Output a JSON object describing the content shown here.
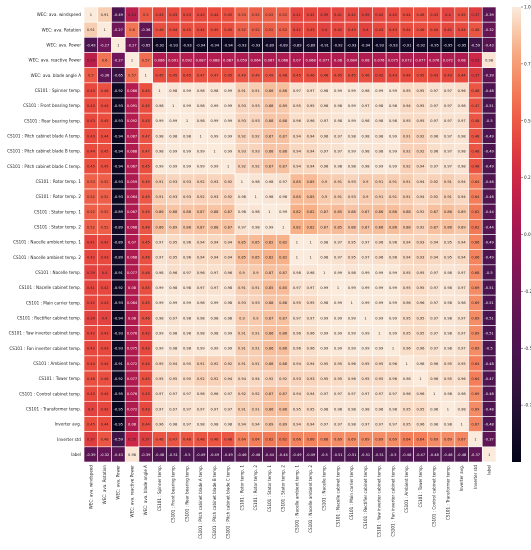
{
  "chart_data": {
    "type": "heatmap",
    "title": "",
    "xlabel": "",
    "ylabel": "",
    "labels": [
      "WEC: ava. windspeed",
      "WEC: ava. Rotation",
      "WEC: ava. Power",
      "WEC: ava. reactive Power",
      "WEC: ava. blade angle A",
      "CS101 : Spinner temp.",
      "CS101 : Front bearing temp.",
      "CS101 : Rear bearing temp.",
      "CS101 : Pitch cabinet blade A temp.",
      "CS101 : Pitch cabinet blade B temp.",
      "CS101 : Pitch cabinet blade C temp.",
      "CS101 : Rotor temp. 1",
      "CS101 : Rotor temp. 2",
      "CS101 : Stator temp. 1",
      "CS101 : Stator temp. 2",
      "CS101 : Nacelle ambient temp. 1",
      "CS101 : Nacelle ambient temp. 2",
      "CS101 : Nacelle temp.",
      "CS101 : Nacelle cabinet temp.",
      "CS101 : Main carrier temp.",
      "CS101 : Rectifier cabinet temp.",
      "CS101 : Yaw inverter cabinet temp.",
      "CS101 : Fan inverter cabinet temp.",
      "CS101 : Ambient temp.",
      "CS101 : Tower temp.",
      "CS101 : Control cabinet temp.",
      "CS101 : Transformer temp.",
      "Inverter avg.",
      "Inverter std",
      "label"
    ],
    "matrix": [
      [
        1,
        0.91,
        -0.49,
        0.14,
        0.5,
        0.43,
        0.43,
        0.43,
        0.43,
        0.44,
        0.45,
        0.53,
        0.52,
        0.52,
        0.52,
        0.41,
        0.42,
        0.39,
        0.41,
        0.42,
        0.39,
        0.42,
        0.42,
        0.44,
        0.46,
        0.43,
        0.4,
        0.45,
        0.37,
        -0.39
      ],
      [
        0.91,
        1,
        -0.27,
        0.6,
        -0.36,
        0.46,
        0.44,
        0.45,
        0.44,
        0.45,
        0.45,
        0.52,
        0.52,
        0.52,
        0.52,
        0.42,
        0.43,
        0.4,
        0.42,
        0.43,
        0.4,
        0.43,
        0.43,
        0.44,
        0.46,
        0.44,
        0.42,
        0.44,
        0.48,
        -0.32
      ],
      [
        -0.49,
        -0.27,
        1,
        -0.27,
        -0.65,
        -0.92,
        -0.93,
        -0.93,
        -0.94,
        -0.94,
        -0.94,
        -0.93,
        -0.93,
        -0.89,
        -0.89,
        -0.89,
        -0.89,
        -0.91,
        -0.92,
        -0.93,
        -0.94,
        -0.93,
        -0.93,
        -0.91,
        -0.92,
        -0.95,
        -0.95,
        -0.95,
        -0.59,
        -0.43
      ],
      [
        0.14,
        0.6,
        -0.27,
        1,
        0.57,
        0.086,
        0.091,
        0.092,
        0.087,
        0.088,
        0.087,
        0.059,
        0.064,
        0.067,
        0.068,
        0.07,
        0.068,
        0.077,
        0.08,
        0.084,
        0.08,
        0.076,
        0.075,
        0.072,
        0.077,
        0.076,
        0.072,
        0.08,
        0.25,
        0.98
      ],
      [
        0.5,
        -0.36,
        -0.65,
        0.57,
        1,
        0.45,
        0.45,
        0.45,
        0.47,
        0.47,
        0.45,
        0.49,
        0.49,
        0.49,
        0.48,
        0.45,
        0.46,
        0.46,
        0.45,
        0.45,
        0.46,
        0.42,
        0.43,
        0.44,
        0.45,
        0.43,
        0.43,
        0.44,
        0.37,
        -0.39
      ],
      [
        0.43,
        0.46,
        -0.92,
        0.086,
        0.45,
        1,
        0.98,
        0.99,
        0.98,
        0.98,
        0.99,
        0.91,
        0.91,
        0.86,
        0.86,
        0.97,
        0.97,
        0.98,
        0.99,
        0.99,
        0.98,
        0.99,
        0.99,
        0.95,
        0.95,
        0.97,
        0.97,
        0.96,
        0.48,
        -0.48
      ],
      [
        0.43,
        0.44,
        -0.93,
        0.091,
        0.45,
        0.98,
        1,
        0.99,
        0.98,
        0.99,
        0.99,
        0.93,
        0.93,
        0.88,
        0.89,
        0.95,
        0.95,
        0.96,
        0.98,
        0.99,
        0.97,
        0.98,
        0.98,
        0.94,
        0.95,
        0.97,
        0.97,
        0.98,
        0.47,
        -0.51
      ],
      [
        0.43,
        0.45,
        -0.93,
        0.092,
        0.45,
        0.99,
        0.99,
        1,
        0.98,
        0.99,
        0.99,
        0.93,
        0.93,
        0.88,
        0.88,
        0.96,
        0.96,
        0.97,
        0.98,
        0.99,
        0.98,
        0.98,
        0.98,
        0.95,
        0.95,
        0.97,
        0.97,
        0.97,
        0.48,
        -0.5
      ],
      [
        0.43,
        0.44,
        -0.94,
        0.087,
        0.47,
        0.98,
        0.98,
        0.98,
        1,
        0.99,
        0.99,
        0.92,
        0.92,
        0.87,
        0.87,
        0.94,
        0.94,
        0.96,
        0.97,
        0.98,
        0.98,
        0.98,
        0.99,
        0.91,
        0.92,
        0.96,
        0.97,
        0.98,
        0.48,
        -0.49
      ],
      [
        0.44,
        0.45,
        -0.94,
        0.088,
        0.47,
        0.98,
        0.99,
        0.99,
        0.99,
        1,
        0.99,
        0.93,
        0.93,
        0.88,
        0.88,
        0.94,
        0.94,
        0.97,
        0.97,
        0.99,
        0.98,
        0.98,
        0.99,
        0.92,
        0.92,
        0.96,
        0.97,
        0.98,
        0.48,
        -0.49
      ],
      [
        0.45,
        0.45,
        -0.94,
        0.087,
        0.45,
        0.99,
        0.99,
        0.99,
        0.99,
        0.99,
        1,
        0.92,
        0.92,
        0.87,
        0.87,
        0.94,
        0.94,
        0.96,
        0.98,
        0.98,
        0.98,
        0.99,
        0.99,
        0.92,
        0.94,
        0.97,
        0.97,
        0.98,
        0.48,
        -0.49
      ],
      [
        0.53,
        0.52,
        -0.93,
        0.059,
        0.49,
        0.91,
        0.93,
        0.93,
        0.92,
        0.93,
        0.92,
        1,
        0.98,
        0.98,
        0.97,
        0.85,
        0.85,
        0.9,
        0.91,
        0.93,
        0.9,
        0.91,
        0.91,
        0.91,
        0.94,
        0.92,
        0.91,
        0.94,
        0.64,
        -0.46
      ],
      [
        0.52,
        0.52,
        -0.93,
        0.064,
        0.49,
        0.91,
        0.93,
        0.93,
        0.92,
        0.93,
        0.92,
        0.98,
        1,
        0.98,
        0.98,
        0.85,
        0.85,
        0.9,
        0.91,
        0.93,
        0.9,
        0.91,
        0.91,
        0.91,
        0.94,
        0.92,
        0.91,
        0.94,
        0.64,
        -0.46
      ],
      [
        0.52,
        0.52,
        -0.89,
        0.067,
        0.49,
        0.86,
        0.88,
        0.88,
        0.87,
        0.88,
        0.87,
        0.98,
        0.98,
        1,
        0.99,
        0.82,
        0.82,
        0.87,
        0.85,
        0.88,
        0.87,
        0.86,
        0.86,
        0.88,
        0.92,
        0.87,
        0.86,
        0.89,
        0.62,
        -0.44
      ],
      [
        0.52,
        0.52,
        -0.89,
        0.068,
        0.48,
        0.86,
        0.89,
        0.88,
        0.87,
        0.88,
        0.87,
        0.97,
        0.98,
        0.99,
        1,
        0.82,
        0.82,
        0.87,
        0.85,
        0.88,
        0.87,
        0.86,
        0.86,
        0.88,
        0.92,
        0.87,
        0.86,
        0.89,
        0.62,
        -0.44
      ],
      [
        0.41,
        0.42,
        -0.89,
        0.07,
        0.45,
        0.97,
        0.95,
        0.96,
        0.94,
        0.94,
        0.94,
        0.85,
        0.85,
        0.82,
        0.82,
        1,
        1,
        0.98,
        0.97,
        0.95,
        0.97,
        0.96,
        0.96,
        0.94,
        0.93,
        0.94,
        0.95,
        0.94,
        0.66,
        -0.49
      ],
      [
        0.42,
        0.43,
        -0.89,
        0.068,
        0.46,
        0.97,
        0.95,
        0.96,
        0.94,
        0.94,
        0.94,
        0.85,
        0.85,
        0.82,
        0.82,
        1,
        1,
        0.98,
        0.97,
        0.95,
        0.97,
        0.96,
        0.96,
        0.94,
        0.93,
        0.94,
        0.95,
        0.94,
        0.66,
        -0.49
      ],
      [
        0.39,
        0.4,
        -0.91,
        0.077,
        0.46,
        0.98,
        0.96,
        0.97,
        0.96,
        0.97,
        0.96,
        0.9,
        0.9,
        0.87,
        0.87,
        0.98,
        0.98,
        1,
        0.99,
        0.98,
        0.99,
        0.99,
        0.99,
        0.95,
        0.95,
        0.97,
        0.98,
        0.97,
        0.68,
        -0.5
      ],
      [
        0.41,
        0.42,
        -0.92,
        0.08,
        0.45,
        0.99,
        0.98,
        0.98,
        0.97,
        0.97,
        0.98,
        0.91,
        0.91,
        0.85,
        0.85,
        0.97,
        0.97,
        0.99,
        1,
        0.99,
        0.99,
        0.99,
        0.99,
        0.95,
        0.95,
        0.97,
        0.98,
        0.97,
        0.69,
        -0.51
      ],
      [
        0.42,
        0.43,
        -0.93,
        0.084,
        0.45,
        0.99,
        0.99,
        0.99,
        0.98,
        0.99,
        0.98,
        0.93,
        0.93,
        0.88,
        0.88,
        0.95,
        0.95,
        0.98,
        0.99,
        1,
        0.99,
        0.99,
        0.99,
        0.96,
        0.96,
        0.97,
        0.98,
        0.98,
        0.69,
        -0.51
      ],
      [
        0.39,
        0.4,
        -0.94,
        0.08,
        0.46,
        0.98,
        0.97,
        0.98,
        0.98,
        0.98,
        0.98,
        0.9,
        0.9,
        0.87,
        0.87,
        0.97,
        0.97,
        0.99,
        0.99,
        0.99,
        1,
        0.99,
        0.99,
        0.95,
        0.95,
        0.97,
        0.98,
        0.97,
        0.69,
        -0.51
      ],
      [
        0.42,
        0.43,
        -0.93,
        0.076,
        0.42,
        0.99,
        0.98,
        0.98,
        0.98,
        0.98,
        0.99,
        0.91,
        0.91,
        0.86,
        0.86,
        0.96,
        0.96,
        0.99,
        0.99,
        0.99,
        0.99,
        1,
        0.99,
        0.95,
        0.95,
        0.97,
        0.98,
        0.97,
        0.69,
        -0.51
      ],
      [
        0.42,
        0.43,
        -0.93,
        0.075,
        0.43,
        0.99,
        0.98,
        0.98,
        0.99,
        0.99,
        0.99,
        0.91,
        0.91,
        0.86,
        0.86,
        0.96,
        0.96,
        0.99,
        0.99,
        0.99,
        0.99,
        0.99,
        1,
        0.96,
        0.96,
        0.97,
        0.98,
        0.97,
        0.69,
        -0.5
      ],
      [
        0.44,
        0.44,
        -0.91,
        0.072,
        0.44,
        0.95,
        0.94,
        0.95,
        0.91,
        0.92,
        0.92,
        0.91,
        0.91,
        0.88,
        0.88,
        0.94,
        0.94,
        0.95,
        0.95,
        0.96,
        0.95,
        0.95,
        0.96,
        1,
        0.98,
        0.96,
        0.95,
        0.95,
        0.64,
        -0.48
      ],
      [
        0.46,
        0.46,
        -0.92,
        0.077,
        0.45,
        0.95,
        0.95,
        0.95,
        0.92,
        0.92,
        0.94,
        0.94,
        0.94,
        0.92,
        0.92,
        0.93,
        0.93,
        0.95,
        0.95,
        0.96,
        0.95,
        0.95,
        0.96,
        0.98,
        1,
        0.96,
        0.95,
        0.96,
        0.64,
        -0.47
      ],
      [
        0.43,
        0.44,
        -0.95,
        0.076,
        0.43,
        0.97,
        0.97,
        0.97,
        0.96,
        0.96,
        0.97,
        0.92,
        0.92,
        0.87,
        0.87,
        0.94,
        0.94,
        0.97,
        0.97,
        0.97,
        0.97,
        0.97,
        0.97,
        0.96,
        0.96,
        1,
        0.98,
        0.98,
        0.69,
        -0.48
      ],
      [
        0.4,
        0.42,
        -0.95,
        0.072,
        0.43,
        0.97,
        0.97,
        0.97,
        0.97,
        0.97,
        0.97,
        0.91,
        0.91,
        0.86,
        0.86,
        0.95,
        0.95,
        0.98,
        0.98,
        0.98,
        0.98,
        0.98,
        0.98,
        0.95,
        0.95,
        0.98,
        1,
        0.98,
        0.69,
        -0.48
      ],
      [
        0.45,
        0.44,
        -0.95,
        0.08,
        0.44,
        0.96,
        0.98,
        0.97,
        0.98,
        0.98,
        0.98,
        0.94,
        0.94,
        0.89,
        0.89,
        0.94,
        0.94,
        0.97,
        0.97,
        0.98,
        0.97,
        0.97,
        0.97,
        0.95,
        0.96,
        0.98,
        0.98,
        1,
        0.67,
        -0.48
      ],
      [
        0.37,
        0.48,
        -0.59,
        0.25,
        0.37,
        0.48,
        0.47,
        0.48,
        0.48,
        0.48,
        0.48,
        0.64,
        0.64,
        0.62,
        0.62,
        0.66,
        0.66,
        0.68,
        0.69,
        0.69,
        0.69,
        0.69,
        0.69,
        0.64,
        0.64,
        0.69,
        0.69,
        0.67,
        1,
        -0.37
      ],
      [
        -0.39,
        -0.32,
        -0.43,
        0.98,
        -0.39,
        -0.48,
        -0.51,
        -0.5,
        -0.49,
        -0.49,
        -0.49,
        -0.46,
        -0.46,
        -0.44,
        -0.44,
        -0.49,
        -0.49,
        -0.5,
        -0.51,
        -0.51,
        -0.51,
        -0.51,
        -0.5,
        -0.48,
        -0.47,
        -0.48,
        -0.48,
        -0.48,
        -0.37,
        1
      ]
    ],
    "colorbar": {
      "min": -1.0,
      "max": 1.0,
      "ticks": [
        "1.00",
        "0.75",
        "0.50",
        "0.25",
        "0.00",
        "-0.25",
        "-0.50",
        "-0.75"
      ],
      "tick_values": [
        1.0,
        0.75,
        0.5,
        0.25,
        0.0,
        -0.25,
        -0.5,
        -0.75
      ],
      "colormap": "rocket"
    },
    "annotations": true,
    "grid": true,
    "cell_border_color": "#ffffff"
  }
}
